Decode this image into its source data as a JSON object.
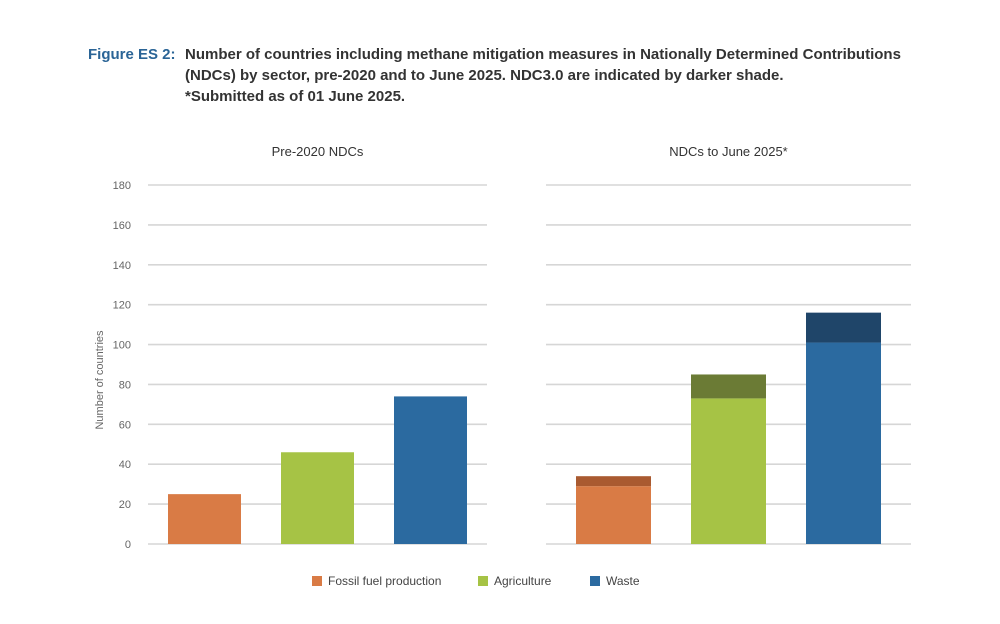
{
  "figure": {
    "label": "Figure ES 2:",
    "caption_lines": [
      "Number of countries including methane mitigation measures in Nationally Determined Contributions",
      "(NDCs) by sector, pre-2020 and to June 2025. NDC3.0 are indicated by darker shade.",
      "*Submitted as of 01 June 2025."
    ]
  },
  "legend": [
    {
      "label": "Fossil fuel production",
      "color": "#d97b45"
    },
    {
      "label": "Agriculture",
      "color": "#a6c345"
    },
    {
      "label": "Waste",
      "color": "#2b6aa0"
    }
  ],
  "chart_data": [
    {
      "type": "bar",
      "title": "Pre-2020 NDCs",
      "ylabel": "Number of countries",
      "ylim": [
        0,
        180
      ],
      "yticks": [
        0,
        20,
        40,
        60,
        80,
        100,
        120,
        140,
        160,
        180
      ],
      "grid": true,
      "categories": [
        "Fossil fuel production",
        "Agriculture",
        "Waste"
      ],
      "series": [
        {
          "values": [
            25,
            46,
            74
          ],
          "colors": [
            "#d97b45",
            "#a6c345",
            "#2b6aa0"
          ]
        }
      ]
    },
    {
      "type": "bar",
      "stacked": true,
      "title": "NDCs to June 2025*",
      "ylim": [
        0,
        180
      ],
      "grid": true,
      "categories": [
        "Fossil fuel production",
        "Agriculture",
        "Waste"
      ],
      "series": [
        {
          "values": [
            29,
            73,
            101
          ],
          "colors": [
            "#d97b45",
            "#a6c345",
            "#2b6aa0"
          ]
        },
        {
          "values": [
            5,
            12,
            15
          ],
          "colors": [
            "#a95a30",
            "#6b7b35",
            "#1f4569"
          ]
        }
      ]
    }
  ]
}
